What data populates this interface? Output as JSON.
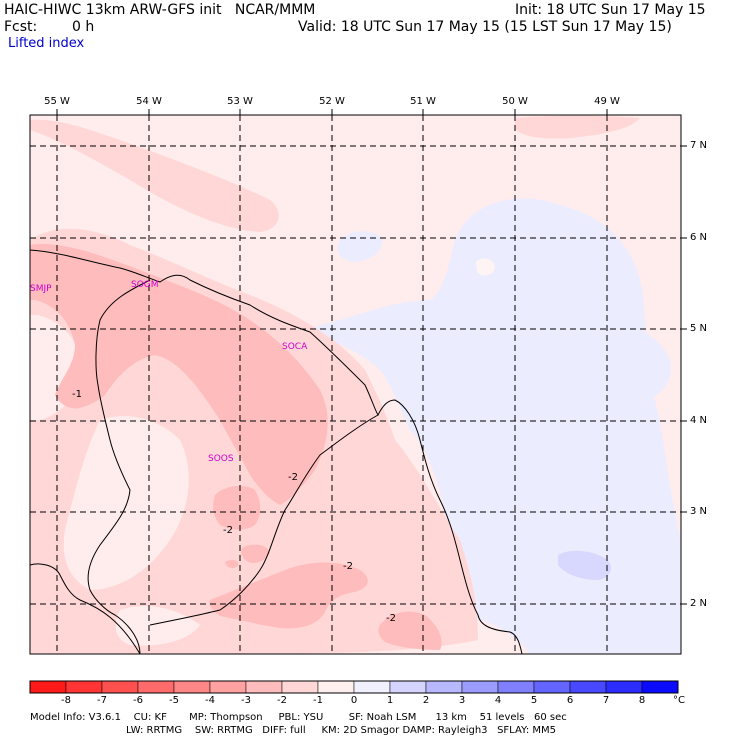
{
  "header": {
    "title": "HAIC-HIWC 13km ARW-GFS init   NCAR/MMM",
    "init": "Init: 18 UTC Sun 17 May 15",
    "fcst_label": "Fcst:",
    "fcst_value": "0 h",
    "valid": "Valid: 18 UTC Sun 17 May 15 (15 LST Sun 17 May 15)",
    "field": "Lifted index"
  },
  "map": {
    "lon_labels": [
      "55 W",
      "54 W",
      "53 W",
      "52 W",
      "51 W",
      "50 W",
      "49 W"
    ],
    "lat_labels": [
      "7 N",
      "6 N",
      "5 N",
      "4 N",
      "3 N",
      "2 N"
    ],
    "stations": [
      "SMJP",
      "SOGM",
      "SOCA",
      "SOOS"
    ],
    "contour_labels": [
      "-1",
      "-2",
      "-2",
      "-2",
      "-2"
    ]
  },
  "colorbar": {
    "labels": [
      "-8",
      "-7",
      "-6",
      "-5",
      "-4",
      "-3",
      "-2",
      "-1",
      "0",
      "1",
      "2",
      "3",
      "4",
      "5",
      "6",
      "7",
      "8"
    ],
    "unit": "°C",
    "colors": [
      "#ff1a1a",
      "#ff3535",
      "#ff5050",
      "#ff6b6b",
      "#ff8686",
      "#ffa1a1",
      "#ffbcbc",
      "#ffd7d7",
      "#fff0f0",
      "#f0f0ff",
      "#d4d4ff",
      "#b8b8ff",
      "#9c9cff",
      "#8080ff",
      "#6464ff",
      "#4848ff",
      "#2c2cff",
      "#0a0aff"
    ]
  },
  "footer": {
    "line1": "Model Info: V3.6.1    CU: KF       MP: Thompson     PBL: YSU        SF: Noah LSM      13 km    51 levels   60 sec",
    "line2": "LW: RRTMG    SW: RRTMG   DIFF: full     KM: 2D Smagor DAMP: Rayleigh3   SFLAY: MM5"
  }
}
